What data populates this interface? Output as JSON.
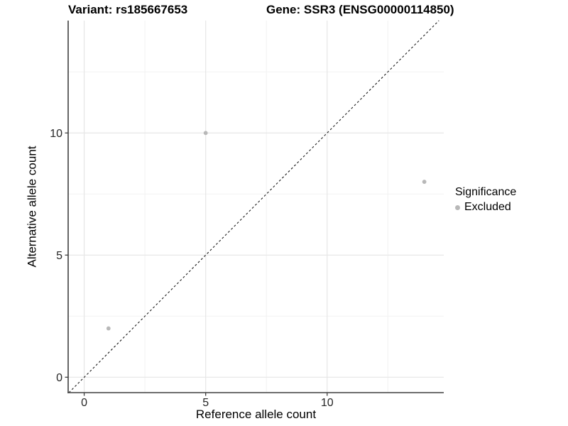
{
  "chart_data": {
    "type": "scatter",
    "title_left": "Variant: rs185667653",
    "title_right": "Gene: SSR3 (ENSG00000114850)",
    "xlabel": "Reference allele count",
    "ylabel": "Alternative allele count",
    "xlim": [
      -0.66,
      14.8
    ],
    "ylim": [
      -0.63,
      14.6
    ],
    "x_ticks": [
      0,
      5,
      10
    ],
    "y_ticks": [
      0,
      5,
      10
    ],
    "x_minor_ticks": [
      2.5,
      7.5,
      12.5
    ],
    "y_minor_ticks": [
      2.5,
      7.5,
      12.5
    ],
    "grid": true,
    "identity_line": {
      "style": "dashed",
      "from": [
        -0.63,
        -0.63
      ],
      "to": [
        14.6,
        14.6
      ],
      "color": "#1a1a1a"
    },
    "series": [
      {
        "name": "Excluded",
        "points": [
          {
            "x": 1,
            "y": 2
          },
          {
            "x": 5,
            "y": 10
          },
          {
            "x": 14,
            "y": 8
          }
        ],
        "color": "#b8b8b8"
      }
    ],
    "legend": {
      "position": "right",
      "title": "Significance",
      "items": [
        {
          "label": "Excluded",
          "color": "#b8b8b8",
          "marker": "circle"
        }
      ]
    },
    "colors": {
      "background": "#ffffff",
      "grid_major": "#e6e6e6",
      "grid_minor": "#f2f2f2",
      "axis": "#3f3f3f",
      "tick_label": "#262626"
    }
  }
}
